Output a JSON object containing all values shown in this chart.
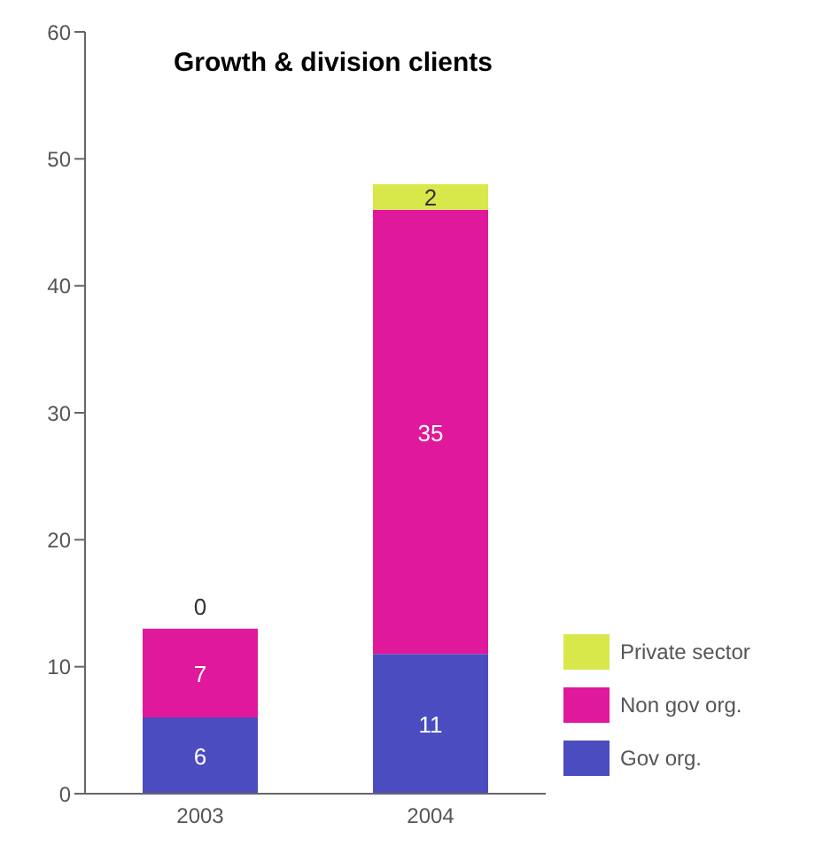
{
  "chart_data": {
    "type": "bar",
    "title": "Growth & division clients",
    "categories": [
      "2003",
      "2004"
    ],
    "stacked": true,
    "series": [
      {
        "name": "Gov org.",
        "color": "#4a4cc0",
        "values": [
          6,
          11
        ]
      },
      {
        "name": "Non gov org.",
        "color": "#e0189c",
        "values": [
          7,
          35
        ]
      },
      {
        "name": "Private sector",
        "color": "#d8e84a",
        "values": [
          0,
          2
        ]
      }
    ],
    "ylim": [
      0,
      60
    ],
    "yticks": [
      0,
      10,
      20,
      30,
      40,
      50,
      60
    ],
    "grid": false,
    "legend": "bottom right",
    "data_labels": true
  }
}
